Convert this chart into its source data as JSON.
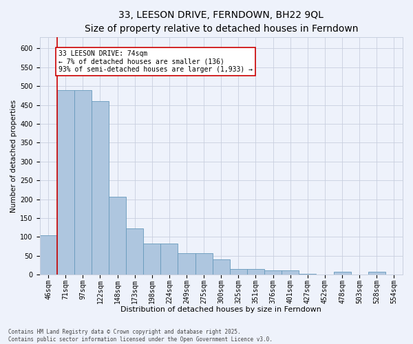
{
  "title": "33, LEESON DRIVE, FERNDOWN, BH22 9QL",
  "subtitle": "Size of property relative to detached houses in Ferndown",
  "xlabel": "Distribution of detached houses by size in Ferndown",
  "ylabel": "Number of detached properties",
  "categories": [
    "46sqm",
    "71sqm",
    "97sqm",
    "122sqm",
    "148sqm",
    "173sqm",
    "198sqm",
    "224sqm",
    "249sqm",
    "275sqm",
    "300sqm",
    "325sqm",
    "351sqm",
    "376sqm",
    "401sqm",
    "427sqm",
    "452sqm",
    "478sqm",
    "503sqm",
    "528sqm",
    "554sqm"
  ],
  "values": [
    105,
    490,
    490,
    460,
    207,
    122,
    83,
    83,
    57,
    57,
    40,
    15,
    15,
    12,
    12,
    3,
    0,
    7,
    0,
    7,
    0
  ],
  "bar_color": "#aec6df",
  "bar_edge_color": "#6699bb",
  "vline_color": "#cc0000",
  "annotation_text": "33 LEESON DRIVE: 74sqm\n← 7% of detached houses are smaller (136)\n93% of semi-detached houses are larger (1,933) →",
  "annotation_box_color": "#ffffff",
  "annotation_box_edge": "#cc0000",
  "ylim": [
    0,
    630
  ],
  "yticks": [
    0,
    50,
    100,
    150,
    200,
    250,
    300,
    350,
    400,
    450,
    500,
    550,
    600
  ],
  "footer": "Contains HM Land Registry data © Crown copyright and database right 2025.\nContains public sector information licensed under the Open Government Licence v3.0.",
  "background_color": "#eef2fb",
  "grid_color": "#c8cfdf",
  "title_fontsize": 10,
  "subtitle_fontsize": 8.5,
  "xlabel_fontsize": 8,
  "ylabel_fontsize": 7.5,
  "tick_fontsize": 7,
  "footer_fontsize": 5.5,
  "annot_fontsize": 7
}
